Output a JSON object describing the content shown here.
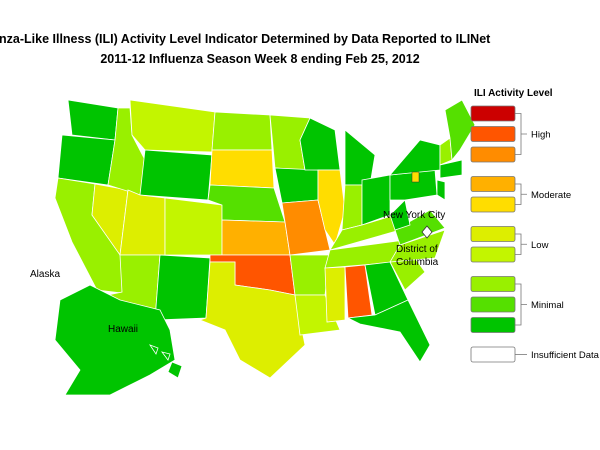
{
  "header": {
    "title": "Influenza-Like Illness (ILI) Activity Level Indicator Determined by Data Reported to ILINet",
    "subtitle": "2011-12  Influenza Season Week  8 ending Feb 25, 2012"
  },
  "map": {
    "labels": {
      "alaska": "Alaska",
      "hawaii": "Hawaii",
      "nyc": "New York City",
      "dc_line1": "District of",
      "dc_line2": "Columbia"
    }
  },
  "legend": {
    "title": "ILI Activity Level",
    "groups": [
      {
        "label": "High",
        "colors": [
          "#cc0000",
          "#ff5500",
          "#ff8c00"
        ]
      },
      {
        "label": "Moderate",
        "colors": [
          "#ffb000",
          "#ffdd00"
        ]
      },
      {
        "label": "Low",
        "colors": [
          "#ddee00",
          "#c3f500"
        ]
      },
      {
        "label": "Minimal",
        "colors": [
          "#99f000",
          "#55e000",
          "#00c400"
        ]
      },
      {
        "label": "Insufficient Data",
        "colors": [
          "#ffffff"
        ]
      }
    ]
  }
}
